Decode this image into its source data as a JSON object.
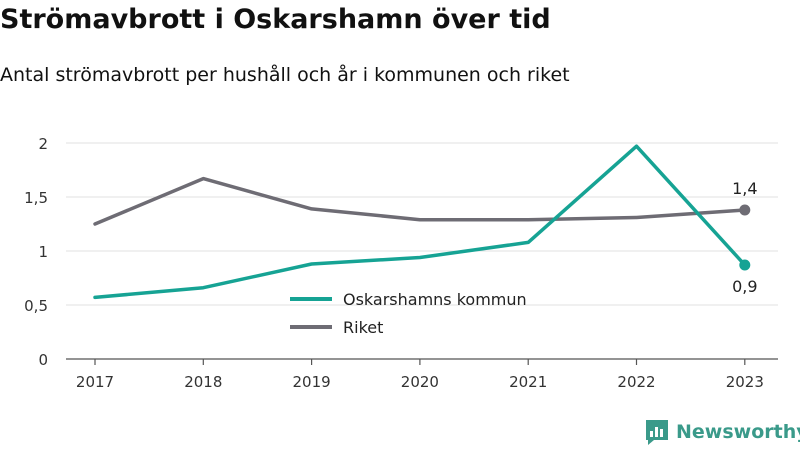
{
  "header": {
    "title": "Strömavbrott i Oskarshamn över tid",
    "subtitle": "Antal strömavbrott per hushåll och år i kommunen och riket"
  },
  "brand": {
    "name": "Newsworthy",
    "icon": "newsworthy-logo-icon",
    "color": "#3a9a8a"
  },
  "chart_data": {
    "type": "line",
    "x": [
      "2017",
      "2018",
      "2019",
      "2020",
      "2021",
      "2022",
      "2023"
    ],
    "ylim": [
      0,
      2
    ],
    "yticks": [
      0,
      0.5,
      1,
      1.5,
      2
    ],
    "ytick_labels": [
      "0",
      "0,5",
      "1",
      "1,5",
      "2"
    ],
    "grid": true,
    "legend_position": "bottom-center",
    "series": [
      {
        "name": "Oskarshamns kommun",
        "color": "#16a394",
        "values": [
          0.57,
          0.66,
          0.88,
          0.94,
          1.08,
          1.97,
          0.87
        ],
        "end_label": "0,9",
        "end_label_position": "below"
      },
      {
        "name": "Riket",
        "color": "#6e6c74",
        "values": [
          1.25,
          1.67,
          1.39,
          1.29,
          1.29,
          1.31,
          1.38
        ],
        "end_label": "1,4",
        "end_label_position": "above"
      }
    ]
  }
}
